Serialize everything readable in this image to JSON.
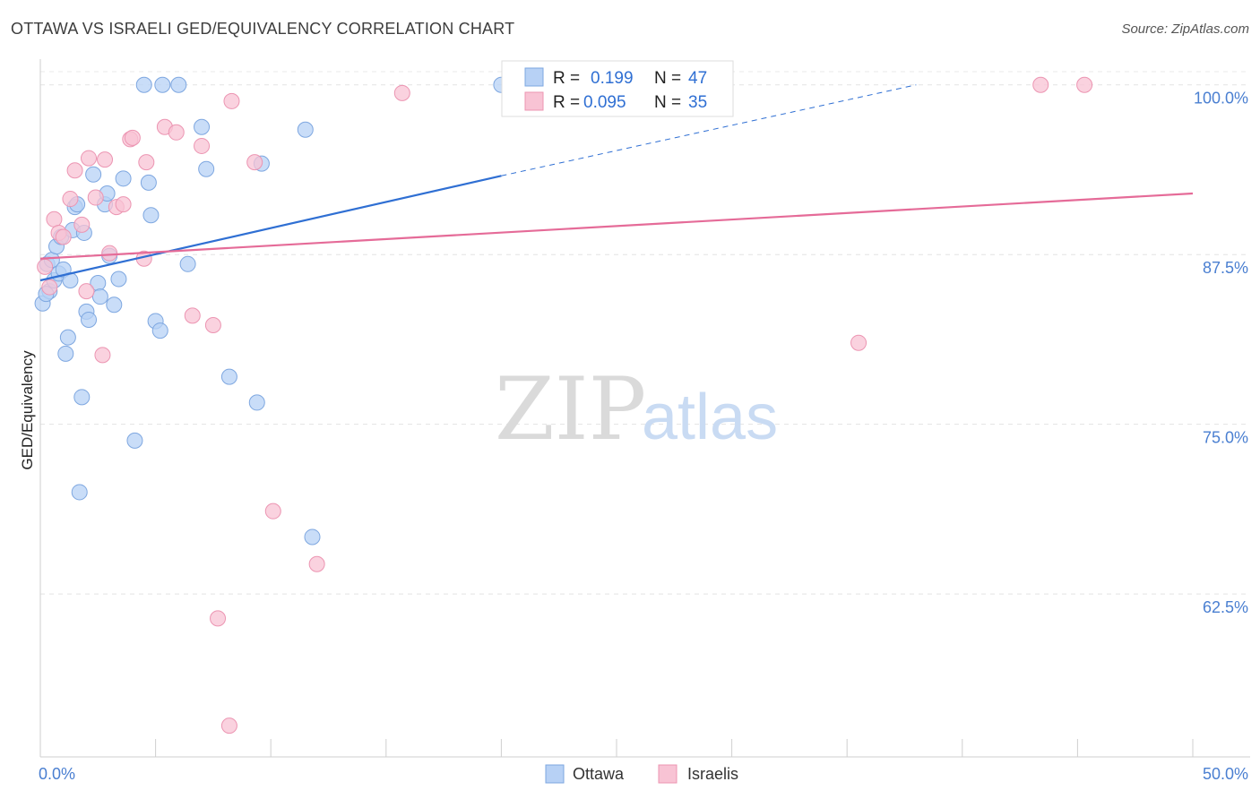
{
  "title": "OTTAWA VS ISRAELI GED/EQUIVALENCY CORRELATION CHART",
  "source": "Source: ZipAtlas.com",
  "watermark": {
    "zip": "ZIP",
    "atlas": "atlas"
  },
  "colors": {
    "ottawa_fill": "#b7d1f5",
    "ottawa_stroke": "#7ea7e0",
    "ottawa_line": "#2f6fd3",
    "israelis_fill": "#f8c3d4",
    "israelis_stroke": "#ec95b2",
    "israelis_line": "#e56b98",
    "tick_label": "#4a7fd1"
  },
  "legend": {
    "rows": [
      {
        "r_label": "R =",
        "r_value": "0.199",
        "n_label": "N =",
        "n_value": "47",
        "series": "ottawa"
      },
      {
        "r_label": "R =",
        "r_value": "0.095",
        "n_label": "N =",
        "n_value": "35",
        "series": "israelis"
      }
    ]
  },
  "chart_data": {
    "type": "scatter",
    "title": "OTTAWA VS ISRAELI GED/EQUIVALENCY CORRELATION CHART",
    "xlabel": "",
    "ylabel": "GED/Equivalency",
    "xlim": [
      0,
      50
    ],
    "ylim": [
      50.5,
      101.5
    ],
    "x_tick_labels": [
      {
        "value": 0,
        "label": "0.0%"
      },
      {
        "value": 50,
        "label": "50.0%"
      }
    ],
    "y_tick_labels": [
      {
        "value": 100,
        "label": "100.0%"
      },
      {
        "value": 87.5,
        "label": "87.5%"
      },
      {
        "value": 75,
        "label": "75.0%"
      },
      {
        "value": 62.5,
        "label": "62.5%"
      }
    ],
    "legend": [
      "Ottawa",
      "Israelis"
    ],
    "series": [
      {
        "name": "Ottawa",
        "key": "ottawa",
        "points": [
          [
            0.1,
            83.9
          ],
          [
            0.3,
            86.8
          ],
          [
            0.4,
            84.8
          ],
          [
            0.5,
            87.1
          ],
          [
            0.6,
            85.6
          ],
          [
            0.7,
            88.1
          ],
          [
            0.8,
            86.1
          ],
          [
            0.9,
            88.8
          ],
          [
            1.0,
            86.4
          ],
          [
            1.1,
            80.2
          ],
          [
            1.2,
            81.4
          ],
          [
            1.3,
            85.6
          ],
          [
            1.4,
            89.3
          ],
          [
            1.5,
            91.0
          ],
          [
            1.6,
            91.2
          ],
          [
            1.7,
            70.0
          ],
          [
            1.8,
            77.0
          ],
          [
            1.9,
            89.1
          ],
          [
            2.0,
            83.3
          ],
          [
            2.1,
            82.7
          ],
          [
            2.3,
            93.4
          ],
          [
            2.5,
            85.4
          ],
          [
            2.6,
            84.4
          ],
          [
            2.8,
            91.2
          ],
          [
            2.9,
            92.0
          ],
          [
            3.0,
            87.4
          ],
          [
            3.2,
            83.8
          ],
          [
            3.4,
            85.7
          ],
          [
            3.6,
            93.1
          ],
          [
            4.1,
            73.8
          ],
          [
            4.5,
            100.0
          ],
          [
            4.7,
            92.8
          ],
          [
            4.8,
            90.4
          ],
          [
            5.0,
            82.6
          ],
          [
            5.2,
            81.9
          ],
          [
            5.3,
            100.0
          ],
          [
            6.0,
            100.0
          ],
          [
            6.4,
            86.8
          ],
          [
            7.0,
            96.9
          ],
          [
            7.2,
            93.8
          ],
          [
            8.2,
            78.5
          ],
          [
            9.4,
            76.6
          ],
          [
            9.6,
            94.2
          ],
          [
            11.5,
            96.7
          ],
          [
            11.8,
            66.7
          ],
          [
            20.0,
            100.0
          ],
          [
            0.25,
            84.6
          ]
        ],
        "trend": {
          "x0": 0,
          "y0": 85.6,
          "x1": 20,
          "y1": 93.3,
          "dashed_to_x": 38,
          "dashed_to_y": 100.0
        }
      },
      {
        "name": "Israelis",
        "key": "israelis",
        "points": [
          [
            0.2,
            86.6
          ],
          [
            0.4,
            85.1
          ],
          [
            0.6,
            90.1
          ],
          [
            0.8,
            89.1
          ],
          [
            1.0,
            88.8
          ],
          [
            1.3,
            91.6
          ],
          [
            1.5,
            93.7
          ],
          [
            1.8,
            89.7
          ],
          [
            2.0,
            84.8
          ],
          [
            2.1,
            94.6
          ],
          [
            2.4,
            91.7
          ],
          [
            2.7,
            80.1
          ],
          [
            2.8,
            94.5
          ],
          [
            3.0,
            87.6
          ],
          [
            3.3,
            91.0
          ],
          [
            3.6,
            91.2
          ],
          [
            3.9,
            96.0
          ],
          [
            4.0,
            96.1
          ],
          [
            4.5,
            87.2
          ],
          [
            4.6,
            94.3
          ],
          [
            5.4,
            96.9
          ],
          [
            5.9,
            96.5
          ],
          [
            6.6,
            83.0
          ],
          [
            7.0,
            95.5
          ],
          [
            7.5,
            82.3
          ],
          [
            7.7,
            60.7
          ],
          [
            8.2,
            52.8
          ],
          [
            8.3,
            98.8
          ],
          [
            9.3,
            94.3
          ],
          [
            10.1,
            68.6
          ],
          [
            12.0,
            64.7
          ],
          [
            15.7,
            99.4
          ],
          [
            35.5,
            81.0
          ],
          [
            43.4,
            100.0
          ],
          [
            45.3,
            100.0
          ]
        ],
        "trend": {
          "x0": 0,
          "y0": 87.2,
          "x1": 50,
          "y1": 92.0
        }
      }
    ]
  }
}
